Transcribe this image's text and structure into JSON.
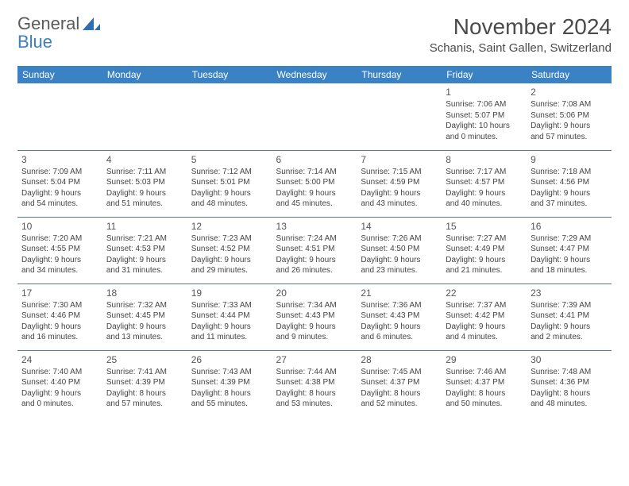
{
  "brand": {
    "word1": "General",
    "word2": "Blue",
    "word1_color": "#5a5a5a",
    "word2_color": "#3b7fbf",
    "icon_color": "#2f6fb0"
  },
  "title": "November 2024",
  "location": "Schanis, Saint Gallen, Switzerland",
  "colors": {
    "header_bg": "#3b82c4",
    "header_text": "#ffffff",
    "rule": "#5a7a9a",
    "body_text": "#444444",
    "page_bg": "#ffffff"
  },
  "typography": {
    "title_fontsize": 28,
    "location_fontsize": 15,
    "dayheader_fontsize": 12,
    "daynum_fontsize": 12,
    "cell_fontsize": 10
  },
  "day_headers": [
    "Sunday",
    "Monday",
    "Tuesday",
    "Wednesday",
    "Thursday",
    "Friday",
    "Saturday"
  ],
  "weeks": [
    [
      null,
      null,
      null,
      null,
      null,
      {
        "n": "1",
        "sunrise": "Sunrise: 7:06 AM",
        "sunset": "Sunset: 5:07 PM",
        "day1": "Daylight: 10 hours",
        "day2": "and 0 minutes."
      },
      {
        "n": "2",
        "sunrise": "Sunrise: 7:08 AM",
        "sunset": "Sunset: 5:06 PM",
        "day1": "Daylight: 9 hours",
        "day2": "and 57 minutes."
      }
    ],
    [
      {
        "n": "3",
        "sunrise": "Sunrise: 7:09 AM",
        "sunset": "Sunset: 5:04 PM",
        "day1": "Daylight: 9 hours",
        "day2": "and 54 minutes."
      },
      {
        "n": "4",
        "sunrise": "Sunrise: 7:11 AM",
        "sunset": "Sunset: 5:03 PM",
        "day1": "Daylight: 9 hours",
        "day2": "and 51 minutes."
      },
      {
        "n": "5",
        "sunrise": "Sunrise: 7:12 AM",
        "sunset": "Sunset: 5:01 PM",
        "day1": "Daylight: 9 hours",
        "day2": "and 48 minutes."
      },
      {
        "n": "6",
        "sunrise": "Sunrise: 7:14 AM",
        "sunset": "Sunset: 5:00 PM",
        "day1": "Daylight: 9 hours",
        "day2": "and 45 minutes."
      },
      {
        "n": "7",
        "sunrise": "Sunrise: 7:15 AM",
        "sunset": "Sunset: 4:59 PM",
        "day1": "Daylight: 9 hours",
        "day2": "and 43 minutes."
      },
      {
        "n": "8",
        "sunrise": "Sunrise: 7:17 AM",
        "sunset": "Sunset: 4:57 PM",
        "day1": "Daylight: 9 hours",
        "day2": "and 40 minutes."
      },
      {
        "n": "9",
        "sunrise": "Sunrise: 7:18 AM",
        "sunset": "Sunset: 4:56 PM",
        "day1": "Daylight: 9 hours",
        "day2": "and 37 minutes."
      }
    ],
    [
      {
        "n": "10",
        "sunrise": "Sunrise: 7:20 AM",
        "sunset": "Sunset: 4:55 PM",
        "day1": "Daylight: 9 hours",
        "day2": "and 34 minutes."
      },
      {
        "n": "11",
        "sunrise": "Sunrise: 7:21 AM",
        "sunset": "Sunset: 4:53 PM",
        "day1": "Daylight: 9 hours",
        "day2": "and 31 minutes."
      },
      {
        "n": "12",
        "sunrise": "Sunrise: 7:23 AM",
        "sunset": "Sunset: 4:52 PM",
        "day1": "Daylight: 9 hours",
        "day2": "and 29 minutes."
      },
      {
        "n": "13",
        "sunrise": "Sunrise: 7:24 AM",
        "sunset": "Sunset: 4:51 PM",
        "day1": "Daylight: 9 hours",
        "day2": "and 26 minutes."
      },
      {
        "n": "14",
        "sunrise": "Sunrise: 7:26 AM",
        "sunset": "Sunset: 4:50 PM",
        "day1": "Daylight: 9 hours",
        "day2": "and 23 minutes."
      },
      {
        "n": "15",
        "sunrise": "Sunrise: 7:27 AM",
        "sunset": "Sunset: 4:49 PM",
        "day1": "Daylight: 9 hours",
        "day2": "and 21 minutes."
      },
      {
        "n": "16",
        "sunrise": "Sunrise: 7:29 AM",
        "sunset": "Sunset: 4:47 PM",
        "day1": "Daylight: 9 hours",
        "day2": "and 18 minutes."
      }
    ],
    [
      {
        "n": "17",
        "sunrise": "Sunrise: 7:30 AM",
        "sunset": "Sunset: 4:46 PM",
        "day1": "Daylight: 9 hours",
        "day2": "and 16 minutes."
      },
      {
        "n": "18",
        "sunrise": "Sunrise: 7:32 AM",
        "sunset": "Sunset: 4:45 PM",
        "day1": "Daylight: 9 hours",
        "day2": "and 13 minutes."
      },
      {
        "n": "19",
        "sunrise": "Sunrise: 7:33 AM",
        "sunset": "Sunset: 4:44 PM",
        "day1": "Daylight: 9 hours",
        "day2": "and 11 minutes."
      },
      {
        "n": "20",
        "sunrise": "Sunrise: 7:34 AM",
        "sunset": "Sunset: 4:43 PM",
        "day1": "Daylight: 9 hours",
        "day2": "and 9 minutes."
      },
      {
        "n": "21",
        "sunrise": "Sunrise: 7:36 AM",
        "sunset": "Sunset: 4:43 PM",
        "day1": "Daylight: 9 hours",
        "day2": "and 6 minutes."
      },
      {
        "n": "22",
        "sunrise": "Sunrise: 7:37 AM",
        "sunset": "Sunset: 4:42 PM",
        "day1": "Daylight: 9 hours",
        "day2": "and 4 minutes."
      },
      {
        "n": "23",
        "sunrise": "Sunrise: 7:39 AM",
        "sunset": "Sunset: 4:41 PM",
        "day1": "Daylight: 9 hours",
        "day2": "and 2 minutes."
      }
    ],
    [
      {
        "n": "24",
        "sunrise": "Sunrise: 7:40 AM",
        "sunset": "Sunset: 4:40 PM",
        "day1": "Daylight: 9 hours",
        "day2": "and 0 minutes."
      },
      {
        "n": "25",
        "sunrise": "Sunrise: 7:41 AM",
        "sunset": "Sunset: 4:39 PM",
        "day1": "Daylight: 8 hours",
        "day2": "and 57 minutes."
      },
      {
        "n": "26",
        "sunrise": "Sunrise: 7:43 AM",
        "sunset": "Sunset: 4:39 PM",
        "day1": "Daylight: 8 hours",
        "day2": "and 55 minutes."
      },
      {
        "n": "27",
        "sunrise": "Sunrise: 7:44 AM",
        "sunset": "Sunset: 4:38 PM",
        "day1": "Daylight: 8 hours",
        "day2": "and 53 minutes."
      },
      {
        "n": "28",
        "sunrise": "Sunrise: 7:45 AM",
        "sunset": "Sunset: 4:37 PM",
        "day1": "Daylight: 8 hours",
        "day2": "and 52 minutes."
      },
      {
        "n": "29",
        "sunrise": "Sunrise: 7:46 AM",
        "sunset": "Sunset: 4:37 PM",
        "day1": "Daylight: 8 hours",
        "day2": "and 50 minutes."
      },
      {
        "n": "30",
        "sunrise": "Sunrise: 7:48 AM",
        "sunset": "Sunset: 4:36 PM",
        "day1": "Daylight: 8 hours",
        "day2": "and 48 minutes."
      }
    ]
  ]
}
